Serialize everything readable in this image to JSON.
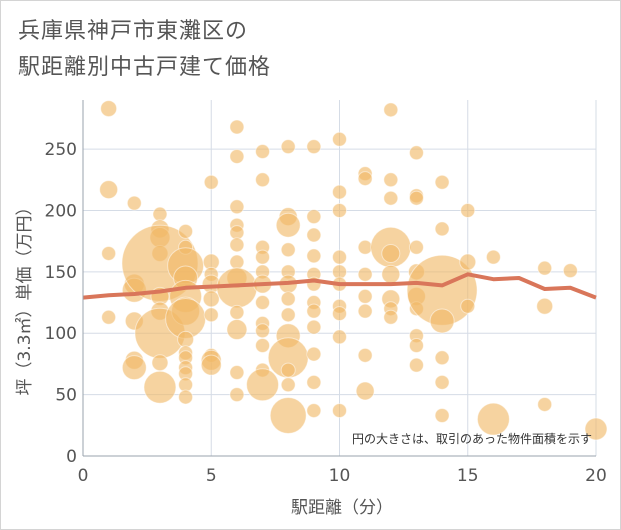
{
  "chart_data": {
    "type": "scatter",
    "title_lines": [
      "兵庫県神戸市東灘区の",
      "駅距離別中古戸建て価格"
    ],
    "xlabel": "駅距離（分）",
    "ylabel": "坪（3.3㎡）単価（万円）",
    "xlim": [
      0,
      20
    ],
    "ylim": [
      0,
      290
    ],
    "xticks": [
      0,
      5,
      10,
      15,
      20
    ],
    "yticks": [
      0,
      50,
      100,
      150,
      200,
      250
    ],
    "note": "円の大きさは、取引のあった物件面積を示す",
    "grid": true,
    "bubble_color": "#f0b866",
    "line_color": "#d9765a",
    "bubbles": [
      {
        "x": 1,
        "y": 283,
        "s": 8
      },
      {
        "x": 1,
        "y": 217,
        "s": 9
      },
      {
        "x": 1,
        "y": 165,
        "s": 7
      },
      {
        "x": 1,
        "y": 113,
        "s": 7
      },
      {
        "x": 2,
        "y": 206,
        "s": 7
      },
      {
        "x": 2,
        "y": 140,
        "s": 10
      },
      {
        "x": 2,
        "y": 135,
        "s": 12
      },
      {
        "x": 2,
        "y": 110,
        "s": 9
      },
      {
        "x": 2,
        "y": 78,
        "s": 9
      },
      {
        "x": 2,
        "y": 72,
        "s": 12
      },
      {
        "x": 3,
        "y": 197,
        "s": 7
      },
      {
        "x": 3,
        "y": 185,
        "s": 9
      },
      {
        "x": 3,
        "y": 178,
        "s": 10
      },
      {
        "x": 3,
        "y": 165,
        "s": 8
      },
      {
        "x": 3,
        "y": 157,
        "s": 38
      },
      {
        "x": 3,
        "y": 130,
        "s": 9
      },
      {
        "x": 3,
        "y": 118,
        "s": 9
      },
      {
        "x": 3,
        "y": 100,
        "s": 25
      },
      {
        "x": 3,
        "y": 76,
        "s": 8
      },
      {
        "x": 3,
        "y": 56,
        "s": 16
      },
      {
        "x": 4,
        "y": 183,
        "s": 7
      },
      {
        "x": 4,
        "y": 170,
        "s": 7
      },
      {
        "x": 4,
        "y": 155,
        "s": 18
      },
      {
        "x": 4,
        "y": 145,
        "s": 12
      },
      {
        "x": 4,
        "y": 130,
        "s": 16
      },
      {
        "x": 4,
        "y": 118,
        "s": 14
      },
      {
        "x": 4,
        "y": 112,
        "s": 20
      },
      {
        "x": 4,
        "y": 95,
        "s": 8
      },
      {
        "x": 4,
        "y": 84,
        "s": 7
      },
      {
        "x": 4,
        "y": 80,
        "s": 7
      },
      {
        "x": 4,
        "y": 72,
        "s": 7
      },
      {
        "x": 4,
        "y": 67,
        "s": 7
      },
      {
        "x": 4,
        "y": 58,
        "s": 7
      },
      {
        "x": 4,
        "y": 48,
        "s": 7
      },
      {
        "x": 5,
        "y": 223,
        "s": 7
      },
      {
        "x": 5,
        "y": 158,
        "s": 8
      },
      {
        "x": 5,
        "y": 148,
        "s": 7
      },
      {
        "x": 5,
        "y": 140,
        "s": 9
      },
      {
        "x": 5,
        "y": 128,
        "s": 8
      },
      {
        "x": 5,
        "y": 115,
        "s": 7
      },
      {
        "x": 5,
        "y": 82,
        "s": 7
      },
      {
        "x": 5,
        "y": 78,
        "s": 10
      },
      {
        "x": 5,
        "y": 74,
        "s": 10
      },
      {
        "x": 6,
        "y": 268,
        "s": 7
      },
      {
        "x": 6,
        "y": 244,
        "s": 7
      },
      {
        "x": 6,
        "y": 203,
        "s": 7
      },
      {
        "x": 6,
        "y": 188,
        "s": 7
      },
      {
        "x": 6,
        "y": 182,
        "s": 7
      },
      {
        "x": 6,
        "y": 172,
        "s": 7
      },
      {
        "x": 6,
        "y": 158,
        "s": 7
      },
      {
        "x": 6,
        "y": 145,
        "s": 10
      },
      {
        "x": 6,
        "y": 137,
        "s": 20
      },
      {
        "x": 6,
        "y": 117,
        "s": 7
      },
      {
        "x": 6,
        "y": 103,
        "s": 10
      },
      {
        "x": 6,
        "y": 68,
        "s": 7
      },
      {
        "x": 6,
        "y": 50,
        "s": 7
      },
      {
        "x": 7,
        "y": 248,
        "s": 7
      },
      {
        "x": 7,
        "y": 225,
        "s": 7
      },
      {
        "x": 7,
        "y": 170,
        "s": 7
      },
      {
        "x": 7,
        "y": 162,
        "s": 7
      },
      {
        "x": 7,
        "y": 150,
        "s": 7
      },
      {
        "x": 7,
        "y": 140,
        "s": 9
      },
      {
        "x": 7,
        "y": 125,
        "s": 7
      },
      {
        "x": 7,
        "y": 108,
        "s": 7
      },
      {
        "x": 7,
        "y": 102,
        "s": 7
      },
      {
        "x": 7,
        "y": 90,
        "s": 7
      },
      {
        "x": 7,
        "y": 70,
        "s": 7
      },
      {
        "x": 7,
        "y": 58,
        "s": 16
      },
      {
        "x": 8,
        "y": 252,
        "s": 7
      },
      {
        "x": 8,
        "y": 195,
        "s": 9
      },
      {
        "x": 8,
        "y": 188,
        "s": 12
      },
      {
        "x": 8,
        "y": 168,
        "s": 7
      },
      {
        "x": 8,
        "y": 150,
        "s": 7
      },
      {
        "x": 8,
        "y": 140,
        "s": 9
      },
      {
        "x": 8,
        "y": 128,
        "s": 7
      },
      {
        "x": 8,
        "y": 115,
        "s": 7
      },
      {
        "x": 8,
        "y": 98,
        "s": 12
      },
      {
        "x": 8,
        "y": 80,
        "s": 20
      },
      {
        "x": 8,
        "y": 70,
        "s": 7
      },
      {
        "x": 8,
        "y": 58,
        "s": 7
      },
      {
        "x": 8,
        "y": 33,
        "s": 18
      },
      {
        "x": 9,
        "y": 252,
        "s": 7
      },
      {
        "x": 9,
        "y": 195,
        "s": 7
      },
      {
        "x": 9,
        "y": 180,
        "s": 7
      },
      {
        "x": 9,
        "y": 163,
        "s": 7
      },
      {
        "x": 9,
        "y": 148,
        "s": 7
      },
      {
        "x": 9,
        "y": 140,
        "s": 7
      },
      {
        "x": 9,
        "y": 125,
        "s": 7
      },
      {
        "x": 9,
        "y": 118,
        "s": 7
      },
      {
        "x": 9,
        "y": 105,
        "s": 7
      },
      {
        "x": 9,
        "y": 83,
        "s": 7
      },
      {
        "x": 9,
        "y": 60,
        "s": 7
      },
      {
        "x": 9,
        "y": 37,
        "s": 7
      },
      {
        "x": 10,
        "y": 258,
        "s": 7
      },
      {
        "x": 10,
        "y": 215,
        "s": 7
      },
      {
        "x": 10,
        "y": 200,
        "s": 7
      },
      {
        "x": 10,
        "y": 162,
        "s": 7
      },
      {
        "x": 10,
        "y": 150,
        "s": 7
      },
      {
        "x": 10,
        "y": 140,
        "s": 7
      },
      {
        "x": 10,
        "y": 122,
        "s": 7
      },
      {
        "x": 10,
        "y": 116,
        "s": 7
      },
      {
        "x": 10,
        "y": 97,
        "s": 7
      },
      {
        "x": 10,
        "y": 37,
        "s": 7
      },
      {
        "x": 11,
        "y": 230,
        "s": 7
      },
      {
        "x": 11,
        "y": 226,
        "s": 7
      },
      {
        "x": 11,
        "y": 170,
        "s": 7
      },
      {
        "x": 11,
        "y": 148,
        "s": 7
      },
      {
        "x": 11,
        "y": 130,
        "s": 7
      },
      {
        "x": 11,
        "y": 118,
        "s": 7
      },
      {
        "x": 11,
        "y": 82,
        "s": 7
      },
      {
        "x": 11,
        "y": 53,
        "s": 9
      },
      {
        "x": 12,
        "y": 282,
        "s": 7
      },
      {
        "x": 12,
        "y": 225,
        "s": 7
      },
      {
        "x": 12,
        "y": 210,
        "s": 7
      },
      {
        "x": 12,
        "y": 170,
        "s": 20
      },
      {
        "x": 12,
        "y": 165,
        "s": 9
      },
      {
        "x": 12,
        "y": 148,
        "s": 9
      },
      {
        "x": 12,
        "y": 128,
        "s": 9
      },
      {
        "x": 12,
        "y": 120,
        "s": 7
      },
      {
        "x": 12,
        "y": 113,
        "s": 7
      },
      {
        "x": 13,
        "y": 247,
        "s": 7
      },
      {
        "x": 13,
        "y": 212,
        "s": 7
      },
      {
        "x": 13,
        "y": 210,
        "s": 7
      },
      {
        "x": 13,
        "y": 170,
        "s": 7
      },
      {
        "x": 13,
        "y": 150,
        "s": 8
      },
      {
        "x": 13,
        "y": 130,
        "s": 9
      },
      {
        "x": 13,
        "y": 120,
        "s": 7
      },
      {
        "x": 13,
        "y": 98,
        "s": 7
      },
      {
        "x": 13,
        "y": 90,
        "s": 7
      },
      {
        "x": 13,
        "y": 74,
        "s": 7
      },
      {
        "x": 14,
        "y": 223,
        "s": 7
      },
      {
        "x": 14,
        "y": 185,
        "s": 7
      },
      {
        "x": 14,
        "y": 135,
        "s": 35
      },
      {
        "x": 14,
        "y": 110,
        "s": 12
      },
      {
        "x": 14,
        "y": 80,
        "s": 7
      },
      {
        "x": 14,
        "y": 60,
        "s": 7
      },
      {
        "x": 14,
        "y": 33,
        "s": 7
      },
      {
        "x": 15,
        "y": 200,
        "s": 7
      },
      {
        "x": 15,
        "y": 158,
        "s": 8
      },
      {
        "x": 15,
        "y": 122,
        "s": 7
      },
      {
        "x": 16,
        "y": 162,
        "s": 7
      },
      {
        "x": 16,
        "y": 30,
        "s": 16
      },
      {
        "x": 18,
        "y": 153,
        "s": 7
      },
      {
        "x": 18,
        "y": 122,
        "s": 8
      },
      {
        "x": 18,
        "y": 42,
        "s": 7
      },
      {
        "x": 19,
        "y": 151,
        "s": 7
      },
      {
        "x": 20,
        "y": 22,
        "s": 11
      }
    ],
    "series": [
      {
        "x": [
          0,
          1,
          2,
          3,
          4,
          5,
          6,
          7,
          8,
          9,
          10,
          11,
          12,
          13,
          14,
          15,
          16,
          17,
          18,
          19,
          20
        ],
        "values": [
          129,
          131,
          132,
          134,
          137,
          138,
          139,
          140,
          141,
          143,
          140,
          140,
          140,
          141,
          139,
          148,
          144,
          145,
          136,
          137,
          129
        ]
      }
    ]
  }
}
